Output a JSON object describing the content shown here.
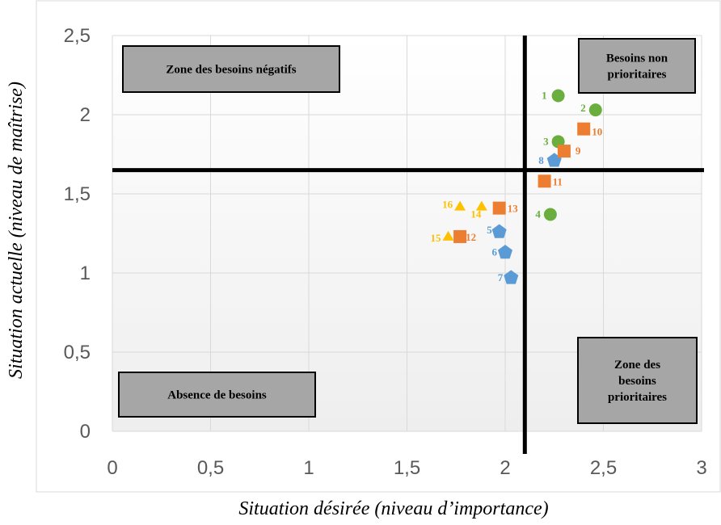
{
  "chart_data": {
    "type": "scatter",
    "title": "",
    "xlabel": "Situation désirée (niveau d’importance)",
    "ylabel": "Situation actuelle (niveau de maîtrise)",
    "xlim": [
      0,
      3
    ],
    "ylim": [
      0,
      2.5
    ],
    "x_ticks": [
      "0",
      "0,5",
      "1",
      "1,5",
      "2",
      "2,5",
      "3"
    ],
    "y_ticks": [
      "0",
      "0,5",
      "1",
      "1,5",
      "2",
      "2,5"
    ],
    "x_tick_values": [
      0,
      0.5,
      1,
      1.5,
      2,
      2.5,
      3
    ],
    "y_tick_values": [
      0,
      0.5,
      1,
      1.5,
      2,
      2.5
    ],
    "grid": true,
    "reference_lines": {
      "x": 2.1,
      "y": 1.65
    },
    "series": [
      {
        "marker": "circle",
        "color": "#6aaf3d",
        "points": [
          {
            "label": "1",
            "x": 2.27,
            "y": 2.12
          },
          {
            "label": "2",
            "x": 2.46,
            "y": 2.03
          },
          {
            "label": "3",
            "x": 2.27,
            "y": 1.83
          },
          {
            "label": "4",
            "x": 2.23,
            "y": 1.37
          }
        ]
      },
      {
        "marker": "pentagon",
        "color": "#5b9bd5",
        "points": [
          {
            "label": "5",
            "x": 1.97,
            "y": 1.26
          },
          {
            "label": "6",
            "x": 2.0,
            "y": 1.13
          },
          {
            "label": "7",
            "x": 2.03,
            "y": 0.97
          },
          {
            "label": "8",
            "x": 2.25,
            "y": 1.71
          }
        ]
      },
      {
        "marker": "square",
        "color": "#ed7d31",
        "points": [
          {
            "label": "9",
            "x": 2.3,
            "y": 1.77
          },
          {
            "label": "10",
            "x": 2.4,
            "y": 1.91
          },
          {
            "label": "11",
            "x": 2.2,
            "y": 1.58
          },
          {
            "label": "12",
            "x": 1.77,
            "y": 1.23
          },
          {
            "label": "13",
            "x": 1.97,
            "y": 1.41
          }
        ]
      },
      {
        "marker": "triangle",
        "color": "#ffc000",
        "points": [
          {
            "label": "14",
            "x": 1.88,
            "y": 1.42
          },
          {
            "label": "15",
            "x": 1.71,
            "y": 1.23
          },
          {
            "label": "16",
            "x": 1.77,
            "y": 1.42
          }
        ]
      }
    ],
    "annotations": [
      {
        "id": "negative",
        "lines": [
          "Zone des besoins négatifs"
        ]
      },
      {
        "id": "nonprio",
        "lines": [
          "Besoins non",
          "prioritaires"
        ]
      },
      {
        "id": "absence",
        "lines": [
          "Absence de besoins"
        ]
      },
      {
        "id": "prio",
        "lines": [
          "Zone des",
          "besoins",
          "prioritaires"
        ]
      }
    ]
  }
}
